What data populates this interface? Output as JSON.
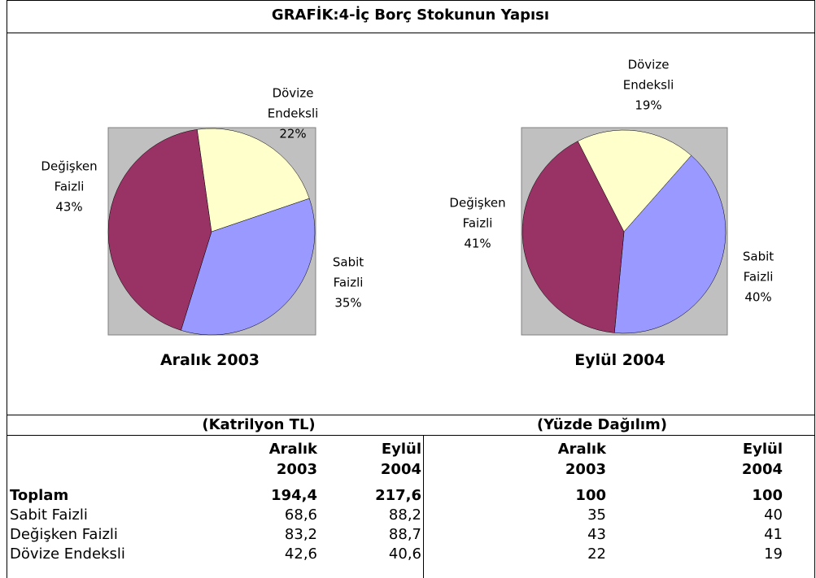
{
  "title": "GRAFİK:4-İç Borç Stokunun Yapısı",
  "chart_data": [
    {
      "type": "pie",
      "title": "Aralık 2003",
      "categories": [
        "Sabit Faizli",
        "Değişken Faizli",
        "Dövize Endeksli"
      ],
      "values": [
        35,
        43,
        22
      ],
      "value_labels": [
        "35%",
        "43%",
        "22%"
      ],
      "colors": [
        "#9999ff",
        "#993366",
        "#ffffcc"
      ]
    },
    {
      "type": "pie",
      "title": "Eylül 2004",
      "categories": [
        "Sabit Faizli",
        "Değişken Faizli",
        "Dövize Endeksli"
      ],
      "values": [
        40,
        41,
        19
      ],
      "value_labels": [
        "40%",
        "41%",
        "19%"
      ],
      "colors": [
        "#9999ff",
        "#993366",
        "#ffffcc"
      ]
    }
  ],
  "table": {
    "groups": [
      "(Katrilyon TL)",
      "(Yüzde Dağılım)"
    ],
    "columns": [
      "Aralık 2003",
      "Eylül 2004",
      "Aralık 2003",
      "Eylül 2004"
    ],
    "rows": [
      [
        "Toplam",
        "194,4",
        "217,6",
        100,
        100
      ],
      [
        "Sabit Faizli",
        "68,6",
        "88,2",
        35,
        40
      ],
      [
        "Değişken Faizli",
        "83,2",
        "88,7",
        43,
        41
      ],
      [
        "Dövize Endeksli",
        "42,6",
        "40,6",
        22,
        19
      ]
    ]
  }
}
